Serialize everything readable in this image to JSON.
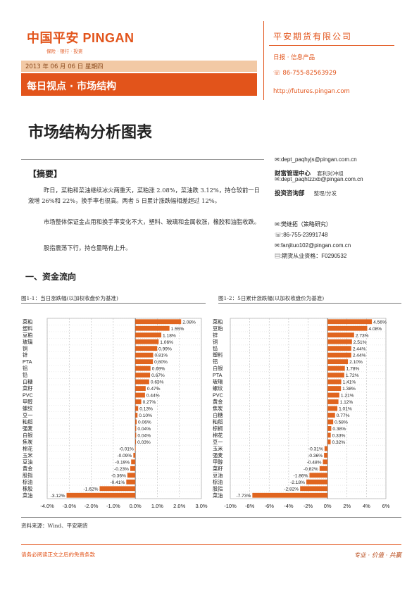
{
  "header": {
    "logo_text": "中国平安 PINGAN",
    "logo_sub": "保险 · 银行 · 投资",
    "company": "平安期货有限公司",
    "product": "日报 · 信息产品",
    "phone": "86-755-82563929",
    "url": "http://futures.pingan.com",
    "date_line": "2013 年 06 月 06 日  星期四",
    "banner": "每日视点 · 市场结构"
  },
  "title": "市场结构分析图表",
  "abstract_heading": "【摘要】",
  "paragraphs": [
    "昨日，菜粕和菜油继续冰火两重天，菜粕涨 2.08%，菜油跌 3.12%，持仓较前一日激增 26%和 22%，换手率也很高。两者 5 日累计涨跌幅相差超过 12%。",
    "市场整体保证金占用和换手率变化不大，塑料、玻璃和金属收涨，橡胶和油脂收跌。",
    "股指震荡下行，持仓量略有上升。"
  ],
  "contacts": {
    "email1": "dept_paqhyjs@pingan.com.cn",
    "dept1": "财富管理中心",
    "dept1_sub": "套利对冲组",
    "email2": "dept_paqhtzzxb@pingan.com.cn",
    "dept2": "投资咨询部",
    "dept2_sub": "整理/分发",
    "analyst": "樊继拓（策略研究）",
    "analyst_phone": "86-755-23991748",
    "analyst_email": "fanjituo102@pingan.com.cn",
    "license": "期货从业资格：F0290532"
  },
  "section_heading": "一、资金流向",
  "chart1_title": "图1-1：当日涨跌幅(以加权收盘价为基准)",
  "chart2_title": "图1-2：5日累计涨跌幅(以加权收盘价为基准)",
  "source": "资料来源：Wind、平安期货",
  "disclaimer": "请务必阅读正文之后的免责条款",
  "motto": "专业 · 价值 · 共赢",
  "colors": {
    "accent": "#e2541b",
    "bar": "#e0651f"
  },
  "icons": {
    "phone": "phone-icon",
    "email": "email-icon",
    "document": "document-icon"
  },
  "chart_data": [
    {
      "type": "bar",
      "orientation": "horizontal",
      "title": "图1-1：当日涨跌幅(以加权收盘价为基准)",
      "categories": [
        "菜粕",
        "塑料",
        "豆粕",
        "玻璃",
        "铜",
        "锌",
        "PTA",
        "铝",
        "铅",
        "白糖",
        "菜籽",
        "PVC",
        "甲醇",
        "螺纹",
        "豆一",
        "籼稻",
        "强麦",
        "白银",
        "焦炭",
        "棉花",
        "玉米",
        "豆油",
        "黄金",
        "股指",
        "棕油",
        "橡胶",
        "菜油"
      ],
      "values": [
        2.08,
        1.55,
        1.18,
        1.06,
        0.99,
        0.81,
        0.8,
        0.69,
        0.67,
        0.63,
        0.47,
        0.44,
        0.27,
        0.13,
        0.1,
        0.06,
        0.04,
        0.04,
        0.03,
        -0.01,
        -0.09,
        -0.19,
        -0.23,
        -0.36,
        -0.41,
        -1.62,
        -3.12
      ],
      "labels": [
        "2.08%",
        "1.55%",
        "1.18%",
        "1.06%",
        "0.99%",
        "0.81%",
        "0.80%",
        "0.69%",
        "0.67%",
        "0.63%",
        "0.47%",
        "0.44%",
        "0.27%",
        "0.13%",
        "0.10%",
        "0.06%",
        "0.04%",
        "0.04%",
        "0.03%",
        "-0.01%",
        "-0.09%",
        "-0.19%",
        "-0.23%",
        "-0.36%",
        "-0.41%",
        "-1.62%",
        "-3.12%"
      ],
      "xlim": [
        -4,
        3
      ],
      "ticks": [
        -4,
        -3,
        -2,
        -1,
        0,
        1,
        2,
        3
      ],
      "tick_labels": [
        "-4.0%",
        "-3.0%",
        "-2.0%",
        "-1.0%",
        "0.0%",
        "1.0%",
        "2.0%",
        "3.0%"
      ],
      "grid": true
    },
    {
      "type": "bar",
      "orientation": "horizontal",
      "title": "图1-2：5日累计涨跌幅(以加权收盘价为基准)",
      "categories": [
        "菜粕",
        "豆粕",
        "锌",
        "铜",
        "铅",
        "塑料",
        "铝",
        "白银",
        "PTA",
        "玻璃",
        "螺纹",
        "PVC",
        "黄金",
        "焦炭",
        "白糖",
        "籼稻",
        "棕榈",
        "棉花",
        "豆一",
        "玉米",
        "强麦",
        "甲醇",
        "菜籽",
        "豆油",
        "棕油",
        "股指",
        "菜油"
      ],
      "values": [
        4.56,
        4.08,
        2.73,
        2.51,
        2.44,
        2.44,
        2.1,
        1.78,
        1.72,
        1.41,
        1.38,
        1.21,
        1.12,
        1.01,
        0.77,
        0.58,
        0.38,
        0.33,
        0.32,
        -0.31,
        -0.36,
        -0.48,
        -0.82,
        -1.86,
        -2.18,
        -2.82,
        -7.73
      ],
      "labels": [
        "4.56%",
        "4.08%",
        "2.73%",
        "2.51%",
        "2.44%",
        "2.44%",
        "2.10%",
        "1.78%",
        "1.72%",
        "1.41%",
        "1.38%",
        "1.21%",
        "1.12%",
        "1.01%",
        "0.77%",
        "0.58%",
        "0.38%",
        "0.33%",
        "0.32%",
        "-0.31%",
        "-0.36%",
        "-0.48%",
        "-0.82%",
        "-1.86%",
        "-2.18%",
        "-2.82%",
        "-7.73%"
      ],
      "xlim": [
        -10,
        6
      ],
      "ticks": [
        -10,
        -8,
        -6,
        -4,
        -2,
        0,
        2,
        4,
        6
      ],
      "tick_labels": [
        "-10%",
        "-8%",
        "-6%",
        "-4%",
        "-2%",
        "0%",
        "2%",
        "4%",
        "6%"
      ],
      "grid": true
    }
  ]
}
